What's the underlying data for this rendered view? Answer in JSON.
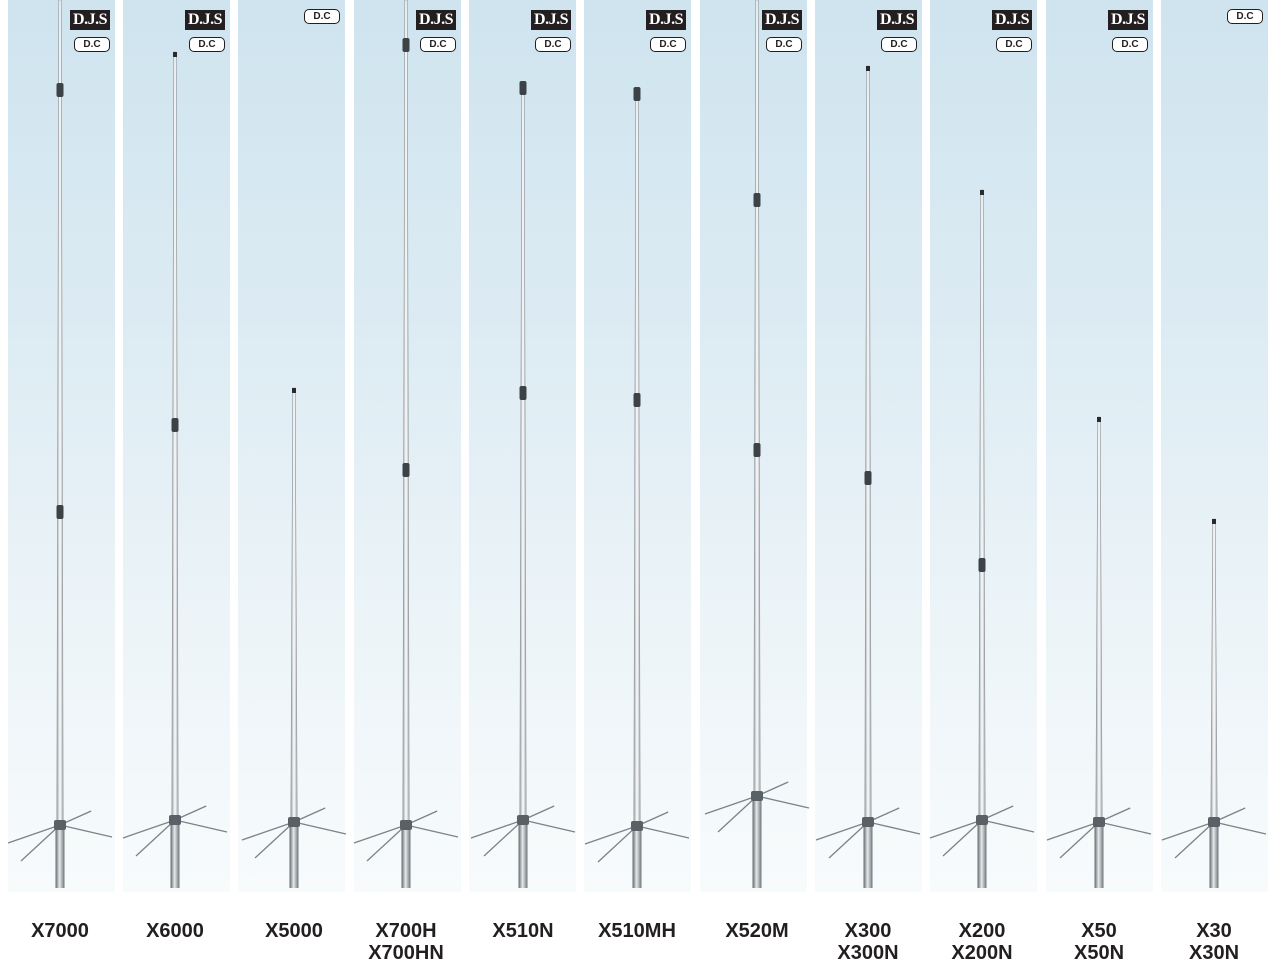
{
  "products": [
    {
      "lines": [
        "X7000"
      ],
      "djs": "D.J.S",
      "dc": "D.C"
    },
    {
      "lines": [
        "X6000"
      ],
      "djs": "D.J.S",
      "dc": "D.C"
    },
    {
      "lines": [
        "X5000"
      ],
      "dc": "D.C"
    },
    {
      "lines": [
        "X700H",
        "X700HN"
      ],
      "djs": "D.J.S",
      "dc": "D.C"
    },
    {
      "lines": [
        "X510N"
      ],
      "djs": "D.J.S",
      "dc": "D.C"
    },
    {
      "lines": [
        "X510MH"
      ],
      "djs": "D.J.S",
      "dc": "D.C"
    },
    {
      "lines": [
        "X520M"
      ],
      "djs": "D.J.S",
      "dc": "D.C"
    },
    {
      "lines": [
        "X300",
        "X300N"
      ],
      "djs": "D.J.S",
      "dc": "D.C"
    },
    {
      "lines": [
        "X200",
        "X200N"
      ],
      "djs": "D.J.S",
      "dc": "D.C"
    },
    {
      "lines": [
        "X50",
        "X50N"
      ],
      "djs": "D.J.S",
      "dc": "D.C"
    },
    {
      "lines": [
        "X30",
        "X30N"
      ],
      "dc": "D.C"
    }
  ]
}
